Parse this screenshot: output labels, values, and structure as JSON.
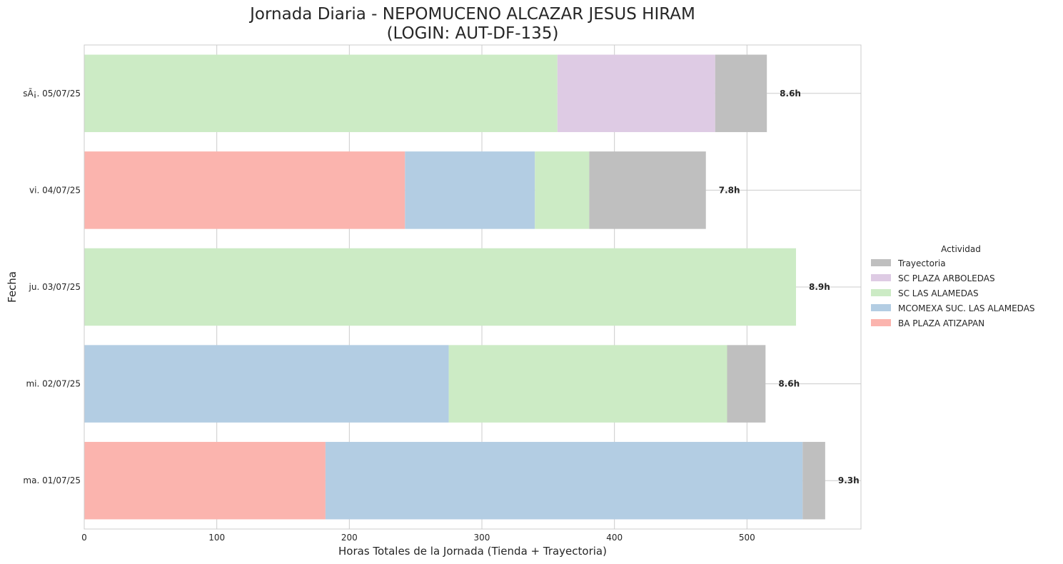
{
  "chart_data": {
    "type": "bar",
    "orientation": "horizontal",
    "stacked": true,
    "title_line1": "Jornada Diaria - NEPOMUCENO ALCAZAR JESUS HIRAM",
    "title_line2": "(LOGIN: AUT-DF-135)",
    "xlabel": "Horas Totales de la Jornada (Tienda + Trayectoria)",
    "ylabel": "Fecha",
    "xlim": [
      0,
      586
    ],
    "xticks": [
      0,
      100,
      200,
      300,
      400,
      500
    ],
    "grid": true,
    "legend_title": "Actividad",
    "legend_placement": "center-right-outside",
    "categories": [
      "ma. 01/07/25",
      "mi. 02/07/25",
      "ju. 03/07/25",
      "vi. 04/07/25",
      "sÃ¡. 05/07/25"
    ],
    "total_labels": [
      "9.3h",
      "8.6h",
      "8.9h",
      "7.8h",
      "8.6h"
    ],
    "series": [
      {
        "name": "BA PLAZA ATIZAPAN",
        "color": "#fbb4ae",
        "values": [
          182,
          0,
          0,
          242,
          0
        ]
      },
      {
        "name": "MCOMEXA SUC. LAS ALAMEDAS",
        "color": "#b3cde3",
        "values": [
          360,
          275,
          0,
          98,
          0
        ]
      },
      {
        "name": "SC LAS ALAMEDAS",
        "color": "#ccebc5",
        "values": [
          0,
          210,
          537,
          41,
          357
        ]
      },
      {
        "name": "SC PLAZA ARBOLEDAS",
        "color": "#decbe4",
        "values": [
          0,
          0,
          0,
          0,
          119
        ]
      },
      {
        "name": "Trayectoria",
        "color": "#bfbfbf",
        "values": [
          17,
          29,
          0,
          88,
          39
        ]
      }
    ],
    "legend_order": [
      "Trayectoria",
      "SC PLAZA ARBOLEDAS",
      "SC LAS ALAMEDAS",
      "MCOMEXA SUC. LAS ALAMEDAS",
      "BA PLAZA ATIZAPAN"
    ]
  }
}
